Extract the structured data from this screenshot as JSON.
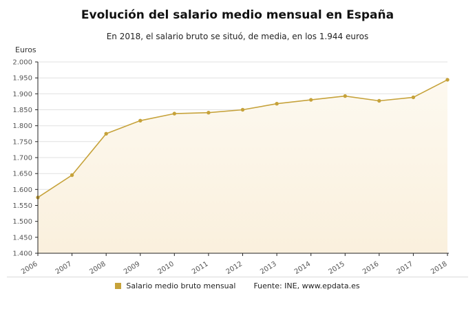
{
  "title": "Evolución del salario medio mensual en España",
  "subtitle": "En 2018, el salario bruto se situó, de media, en los 1.944 euros",
  "y_axis_unit": "Euros",
  "legend": {
    "label": "Salario medio bruto mensual"
  },
  "source": "Fuente: INE, www.epdata.es",
  "colors": {
    "line": "#c6a23a",
    "marker": "#c6a23a",
    "area_top": "#fdf9f0",
    "area_bottom": "#faf0dd",
    "grid": "#e0e0e0",
    "axis": "#222222",
    "tick_text": "#555555"
  },
  "chart_data": {
    "type": "line",
    "title": "Evolución del salario medio mensual en España",
    "subtitle": "En 2018, el salario bruto se situó, de media, en los 1.944 euros",
    "xlabel": "",
    "ylabel": "Euros",
    "x": [
      2006,
      2007,
      2008,
      2009,
      2010,
      2011,
      2012,
      2013,
      2014,
      2015,
      2016,
      2017,
      2018
    ],
    "series": [
      {
        "name": "Salario medio bruto mensual",
        "values": [
          1575,
          1645,
          1775,
          1816,
          1838,
          1841,
          1850,
          1869,
          1881,
          1893,
          1878,
          1889,
          1944
        ]
      }
    ],
    "ylim": [
      1400,
      2000
    ],
    "yticks": [
      1400,
      1450,
      1500,
      1550,
      1600,
      1650,
      1700,
      1750,
      1800,
      1850,
      1900,
      1950,
      2000
    ],
    "grid": true,
    "legend_position": "bottom",
    "annotations": []
  }
}
